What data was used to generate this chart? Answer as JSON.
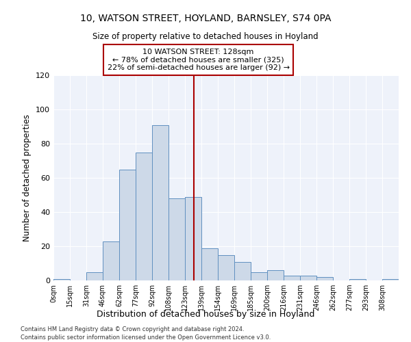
{
  "title1": "10, WATSON STREET, HOYLAND, BARNSLEY, S74 0PA",
  "title2": "Size of property relative to detached houses in Hoyland",
  "xlabel": "Distribution of detached houses by size in Hoyland",
  "ylabel": "Number of detached properties",
  "bar_color": "#cdd9e8",
  "bar_edge_color": "#6090c0",
  "bins_labels": [
    "0sqm",
    "15sqm",
    "31sqm",
    "46sqm",
    "62sqm",
    "77sqm",
    "92sqm",
    "108sqm",
    "123sqm",
    "139sqm",
    "154sqm",
    "169sqm",
    "185sqm",
    "200sqm",
    "216sqm",
    "231sqm",
    "246sqm",
    "262sqm",
    "277sqm",
    "293sqm",
    "308sqm"
  ],
  "bar_heights": [
    1,
    0,
    5,
    23,
    65,
    75,
    91,
    48,
    49,
    19,
    15,
    11,
    5,
    6,
    3,
    3,
    2,
    0,
    1,
    0,
    1
  ],
  "bin_width": 15,
  "vline_x": 128,
  "vline_color": "#aa0000",
  "annotation_text": "10 WATSON STREET: 128sqm\n← 78% of detached houses are smaller (325)\n22% of semi-detached houses are larger (92) →",
  "annotation_box_color": "#ffffff",
  "annotation_box_edge": "#aa0000",
  "ylim": [
    0,
    120
  ],
  "yticks": [
    0,
    20,
    40,
    60,
    80,
    100,
    120
  ],
  "background_color": "#eef2fa",
  "footer1": "Contains HM Land Registry data © Crown copyright and database right 2024.",
  "footer2": "Contains public sector information licensed under the Open Government Licence v3.0."
}
